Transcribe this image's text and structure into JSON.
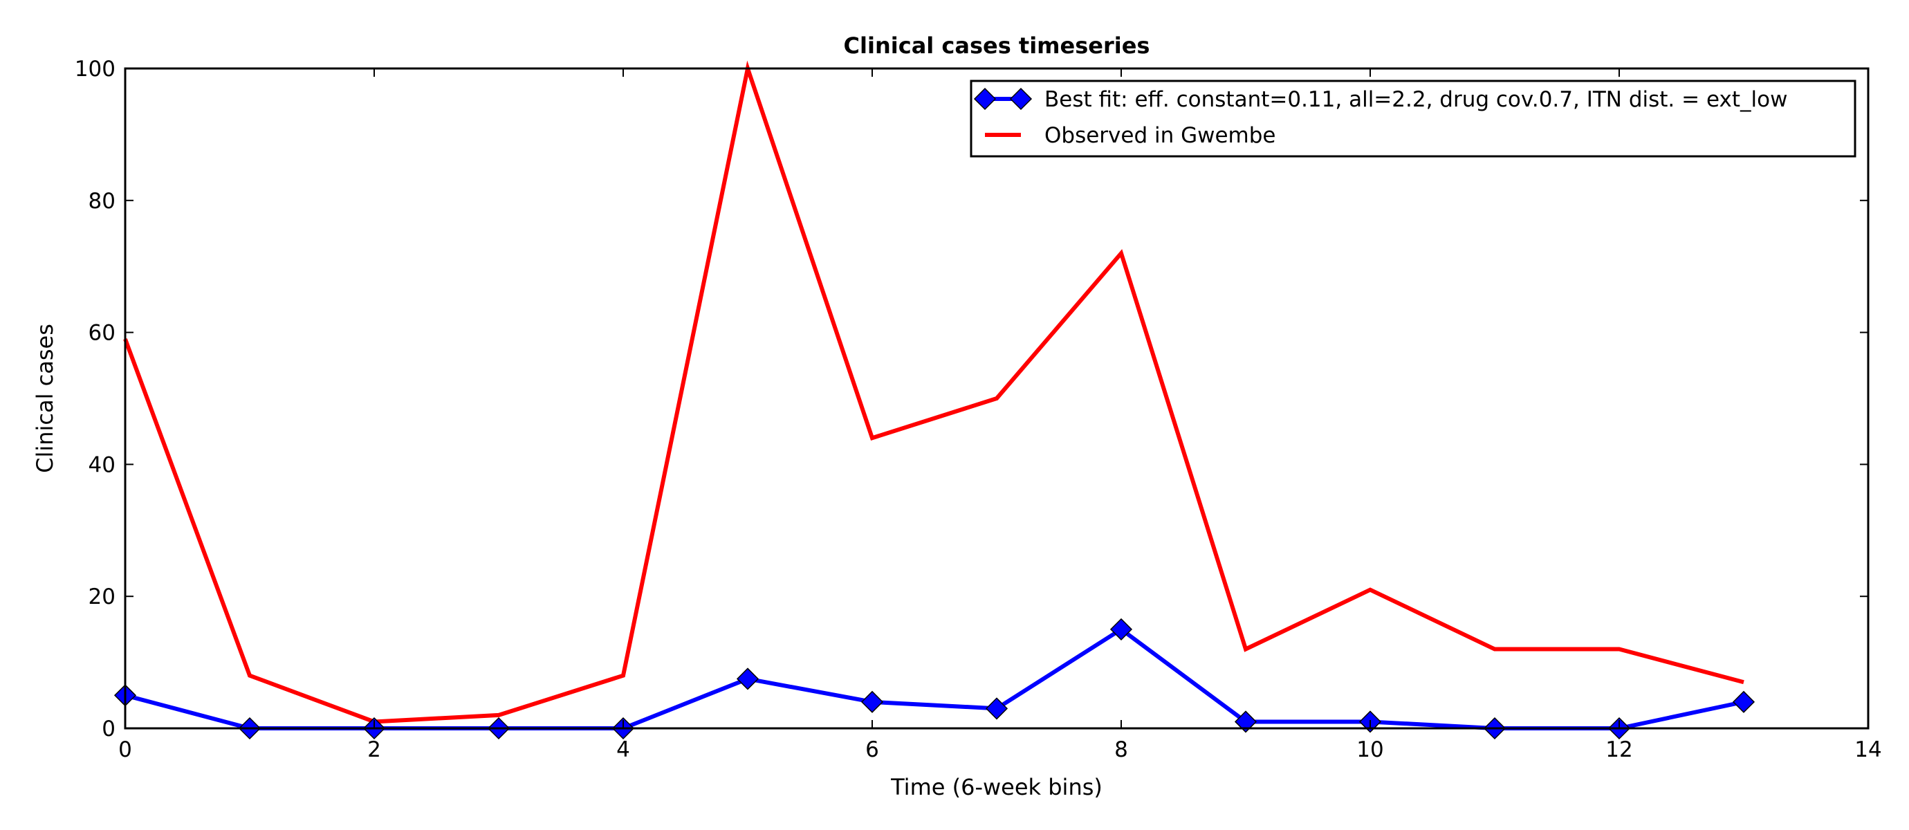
{
  "chart_data": {
    "type": "line",
    "title": "Clinical cases timeseries",
    "xlabel": "Time (6-week bins)",
    "ylabel": "Clinical cases",
    "xlim": [
      0,
      14
    ],
    "ylim": [
      0,
      100
    ],
    "xticks": [
      0,
      2,
      4,
      6,
      8,
      10,
      12,
      14
    ],
    "yticks": [
      0,
      20,
      40,
      60,
      80,
      100
    ],
    "grid": false,
    "legend_position": "top-right",
    "series": [
      {
        "name": "Best fit: eff. constant=0.11, all=2.2, drug cov.0.7, ITN dist. = ext_low",
        "color": "#0000ff",
        "marker": "diamond",
        "x": [
          0,
          1,
          2,
          3,
          4,
          5,
          6,
          7,
          8,
          9,
          10,
          11,
          12,
          13
        ],
        "values": [
          5,
          0,
          0,
          0,
          0,
          7.5,
          4,
          3,
          15,
          1,
          1,
          0,
          0,
          4
        ]
      },
      {
        "name": "Observed in Gwembe",
        "color": "#ff0000",
        "marker": "none",
        "x": [
          0,
          1,
          2,
          3,
          4,
          5,
          6,
          7,
          8,
          9,
          10,
          11,
          12,
          13
        ],
        "values": [
          59,
          8,
          1,
          2,
          8,
          100,
          44,
          50,
          72,
          12,
          21,
          12,
          12,
          7
        ]
      }
    ]
  }
}
